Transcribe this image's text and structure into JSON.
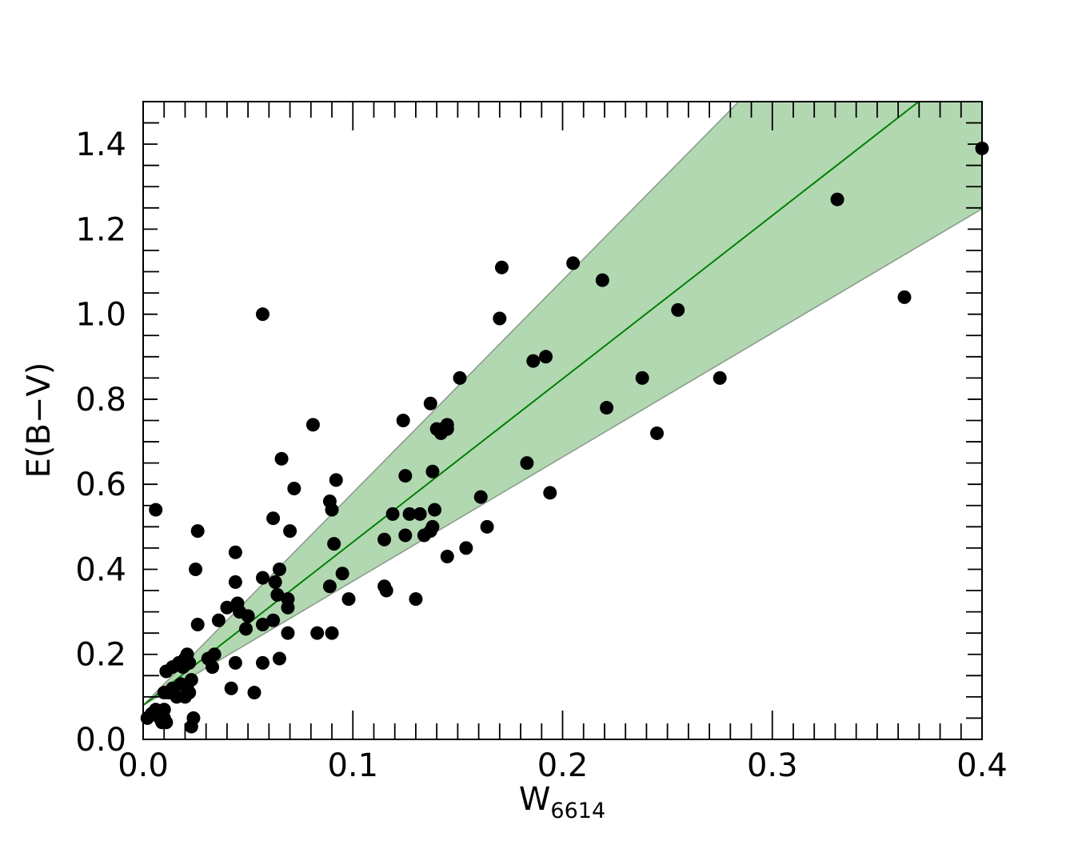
{
  "chart_data": {
    "type": "scatter",
    "title": "",
    "xlabel": "W",
    "xlabel_subscript": "6614",
    "ylabel": "E(B−V)",
    "xlim": [
      0.0,
      0.4
    ],
    "ylim": [
      0.0,
      1.5
    ],
    "x_ticks": [
      0.0,
      0.1,
      0.2,
      0.3,
      0.4
    ],
    "x_tick_labels": [
      "0.0",
      "0.1",
      "0.2",
      "0.3",
      "0.4"
    ],
    "y_ticks": [
      0.0,
      0.2,
      0.4,
      0.6,
      0.8,
      1.0,
      1.2,
      1.4
    ],
    "y_tick_labels": [
      "0.0",
      "0.2",
      "0.4",
      "0.6",
      "0.8",
      "1.0",
      "1.2",
      "1.4"
    ],
    "grid": false,
    "legend": "none",
    "colors": {
      "points": "#000000",
      "fit_line": "#008000",
      "band_fill": "#b2d8b2",
      "band_edge": "#8c9c8c"
    },
    "fit_line": {
      "slope": 3.84,
      "intercept": 0.08
    },
    "band": {
      "upper_slope": 5.0,
      "lower_slope": 2.92,
      "intercept": 0.08
    },
    "points": [
      [
        0.002,
        0.05
      ],
      [
        0.004,
        0.06
      ],
      [
        0.006,
        0.07
      ],
      [
        0.007,
        0.06
      ],
      [
        0.008,
        0.05
      ],
      [
        0.009,
        0.04
      ],
      [
        0.01,
        0.07
      ],
      [
        0.01,
        0.05
      ],
      [
        0.011,
        0.04
      ],
      [
        0.01,
        0.11
      ],
      [
        0.012,
        0.11
      ],
      [
        0.014,
        0.12
      ],
      [
        0.016,
        0.1
      ],
      [
        0.018,
        0.13
      ],
      [
        0.02,
        0.1
      ],
      [
        0.021,
        0.12
      ],
      [
        0.022,
        0.11
      ],
      [
        0.023,
        0.14
      ],
      [
        0.011,
        0.16
      ],
      [
        0.014,
        0.17
      ],
      [
        0.017,
        0.18
      ],
      [
        0.019,
        0.17
      ],
      [
        0.02,
        0.19
      ],
      [
        0.021,
        0.2
      ],
      [
        0.022,
        0.18
      ],
      [
        0.023,
        0.03
      ],
      [
        0.024,
        0.05
      ],
      [
        0.006,
        0.54
      ],
      [
        0.025,
        0.4
      ],
      [
        0.026,
        0.49
      ],
      [
        0.026,
        0.27
      ],
      [
        0.031,
        0.19
      ],
      [
        0.033,
        0.17
      ],
      [
        0.034,
        0.2
      ],
      [
        0.036,
        0.28
      ],
      [
        0.04,
        0.31
      ],
      [
        0.042,
        0.12
      ],
      [
        0.044,
        0.18
      ],
      [
        0.044,
        0.44
      ],
      [
        0.044,
        0.37
      ],
      [
        0.045,
        0.32
      ],
      [
        0.046,
        0.3
      ],
      [
        0.049,
        0.26
      ],
      [
        0.05,
        0.29
      ],
      [
        0.053,
        0.11
      ],
      [
        0.057,
        0.27
      ],
      [
        0.057,
        0.38
      ],
      [
        0.057,
        0.18
      ],
      [
        0.057,
        1.0
      ],
      [
        0.062,
        0.28
      ],
      [
        0.062,
        0.52
      ],
      [
        0.063,
        0.37
      ],
      [
        0.064,
        0.34
      ],
      [
        0.065,
        0.19
      ],
      [
        0.065,
        0.4
      ],
      [
        0.066,
        0.66
      ],
      [
        0.069,
        0.31
      ],
      [
        0.069,
        0.33
      ],
      [
        0.069,
        0.25
      ],
      [
        0.07,
        0.49
      ],
      [
        0.072,
        0.59
      ],
      [
        0.081,
        0.74
      ],
      [
        0.083,
        0.25
      ],
      [
        0.089,
        0.56
      ],
      [
        0.089,
        0.36
      ],
      [
        0.09,
        0.54
      ],
      [
        0.09,
        0.25
      ],
      [
        0.091,
        0.46
      ],
      [
        0.092,
        0.61
      ],
      [
        0.095,
        0.39
      ],
      [
        0.098,
        0.33
      ],
      [
        0.115,
        0.47
      ],
      [
        0.115,
        0.36
      ],
      [
        0.116,
        0.35
      ],
      [
        0.119,
        0.53
      ],
      [
        0.124,
        0.75
      ],
      [
        0.125,
        0.62
      ],
      [
        0.125,
        0.48
      ],
      [
        0.127,
        0.53
      ],
      [
        0.13,
        0.33
      ],
      [
        0.132,
        0.53
      ],
      [
        0.134,
        0.48
      ],
      [
        0.137,
        0.49
      ],
      [
        0.137,
        0.79
      ],
      [
        0.138,
        0.63
      ],
      [
        0.138,
        0.5
      ],
      [
        0.139,
        0.54
      ],
      [
        0.14,
        0.73
      ],
      [
        0.142,
        0.72
      ],
      [
        0.143,
        0.73
      ],
      [
        0.145,
        0.73
      ],
      [
        0.145,
        0.74
      ],
      [
        0.145,
        0.43
      ],
      [
        0.151,
        0.85
      ],
      [
        0.154,
        0.45
      ],
      [
        0.161,
        0.57
      ],
      [
        0.164,
        0.5
      ],
      [
        0.17,
        0.99
      ],
      [
        0.171,
        1.11
      ],
      [
        0.183,
        0.65
      ],
      [
        0.186,
        0.89
      ],
      [
        0.192,
        0.9
      ],
      [
        0.194,
        0.58
      ],
      [
        0.205,
        1.12
      ],
      [
        0.219,
        1.08
      ],
      [
        0.221,
        0.78
      ],
      [
        0.238,
        0.85
      ],
      [
        0.245,
        0.72
      ],
      [
        0.255,
        1.01
      ],
      [
        0.275,
        0.85
      ],
      [
        0.331,
        1.27
      ],
      [
        0.363,
        1.04
      ],
      [
        0.4,
        1.39
      ]
    ]
  }
}
